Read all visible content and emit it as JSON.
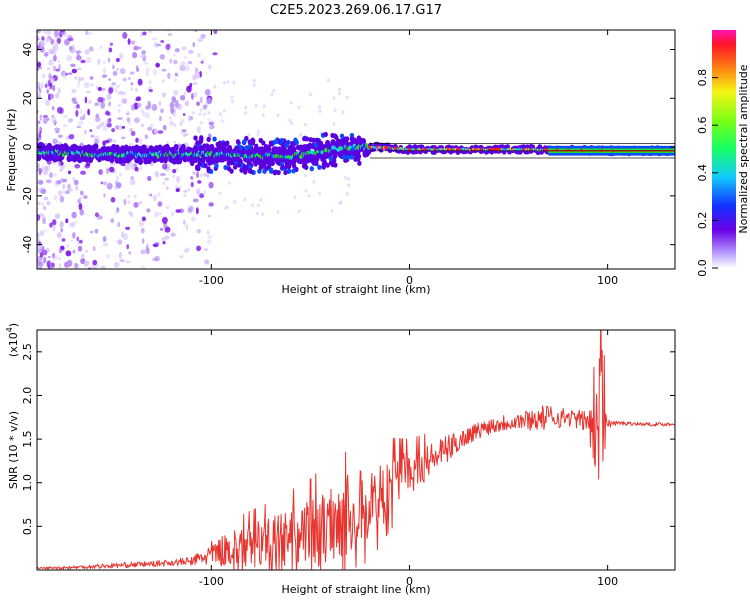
{
  "title": "C2E5.2023.269.06.17.G17",
  "colors": {
    "snr_line": "#e8342e",
    "spectrum_band": [
      "#5a00e0",
      "#0a4cff",
      "#19d2e6",
      "#1ee62d",
      "#d2d232",
      "#ff2a1a"
    ],
    "frequency_fit_line": "#000000"
  },
  "chart_data": [
    {
      "type": "heatmap",
      "xlabel": "Height of straight line (km)",
      "ylabel": "Frequency (Hz)",
      "xlim": [
        -188,
        134
      ],
      "ylim": [
        -50,
        48
      ],
      "xticks": [
        -100,
        0,
        100
      ],
      "xtick_labels": [
        "-100",
        "0",
        "100"
      ],
      "yticks": [
        -40,
        -20,
        0,
        20,
        40
      ],
      "ytick_labels": [
        "-40",
        "-20",
        "0",
        "20",
        "40"
      ],
      "grid": false,
      "colorbar": {
        "label": "Normalized spectral amplitude",
        "range": [
          0,
          1
        ],
        "ticks": [
          0.0,
          0.2,
          0.4,
          0.6,
          0.8
        ],
        "tick_labels": [
          "0.0",
          "0.2",
          "0.4",
          "0.6",
          "0.8"
        ],
        "colormap": "rainbow"
      },
      "band_center": {
        "x": [
          -188,
          -150,
          -100,
          -60,
          -40,
          -25,
          -15,
          0,
          20,
          60,
          100,
          134
        ],
        "y": [
          -2,
          -3,
          -3,
          -4,
          -1,
          0,
          0,
          -1,
          -1,
          -1,
          -1.5,
          -1.5
        ]
      },
      "fit_line": {
        "x": [
          -20,
          134
        ],
        "y": [
          -1.5,
          -1.5
        ]
      }
    },
    {
      "type": "line",
      "xlabel": "Height of straight line (km)",
      "ylabel": "SNR (10 * v/v)",
      "y_exponent_label": "(x10",
      "y_exponent": "4",
      "y_exponent_close": ")",
      "xlim": [
        -188,
        134
      ],
      "ylim": [
        0,
        2.75
      ],
      "xticks": [
        -100,
        0,
        100
      ],
      "xtick_labels": [
        "-100",
        "0",
        "100"
      ],
      "yticks": [
        0.5,
        1.0,
        1.5,
        2.0,
        2.5
      ],
      "ytick_labels": [
        "0.5",
        "1.0",
        "1.5",
        "2.0",
        "2.5"
      ],
      "grid": false,
      "series": [
        {
          "x": [
            -188,
            -170,
            -150,
            -130,
            -110,
            -100,
            -90,
            -80,
            -70,
            -60,
            -50,
            -40,
            -30,
            -20,
            -10,
            0,
            10,
            20,
            30,
            40,
            50,
            60,
            70,
            80,
            90,
            95,
            98,
            100,
            110,
            120,
            134
          ],
          "y": [
            0.02,
            0.03,
            0.05,
            0.07,
            0.1,
            0.18,
            0.25,
            0.28,
            0.3,
            0.35,
            0.4,
            0.55,
            0.65,
            0.75,
            0.95,
            1.1,
            1.25,
            1.4,
            1.55,
            1.65,
            1.7,
            1.72,
            1.75,
            1.75,
            1.7,
            1.8,
            2.0,
            1.68,
            1.68,
            1.67,
            1.67
          ],
          "variability": [
            0.01,
            0.02,
            0.03,
            0.03,
            0.05,
            0.15,
            0.2,
            0.25,
            0.3,
            0.35,
            0.4,
            0.45,
            0.45,
            0.45,
            0.35,
            0.25,
            0.2,
            0.15,
            0.1,
            0.1,
            0.1,
            0.12,
            0.15,
            0.1,
            0.12,
            0.5,
            0.8,
            0.05,
            0.02,
            0.02,
            0.02
          ]
        }
      ]
    }
  ]
}
